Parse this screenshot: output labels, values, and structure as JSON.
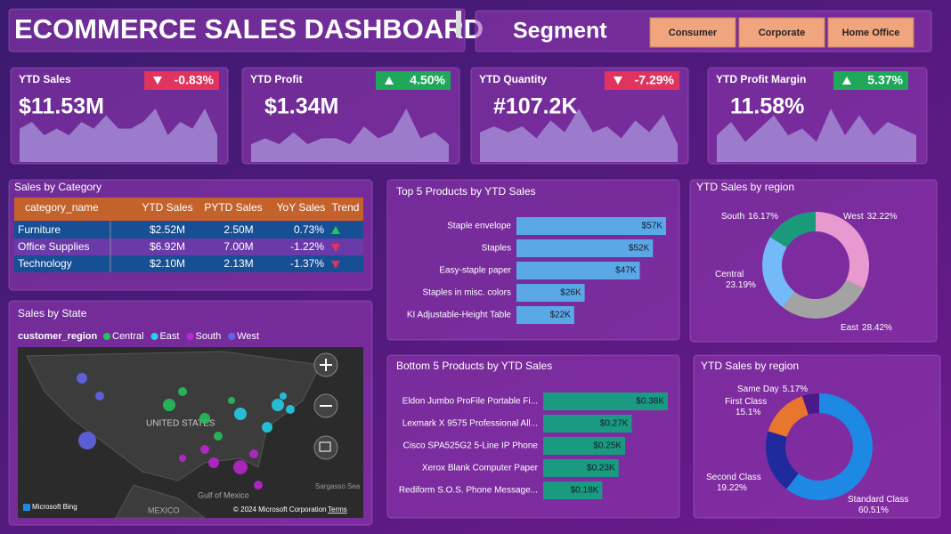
{
  "header": {
    "title": "ECOMMERCE SALES DASHBOARD"
  },
  "segment": {
    "label": "Segment",
    "options": [
      "Consumer",
      "Corporate",
      "Home Office"
    ]
  },
  "kpis": [
    {
      "title": "YTD Sales",
      "value": "$11.53M",
      "change": "-0.83%",
      "trend": [
        5,
        6,
        4,
        5,
        4,
        6,
        5,
        7,
        5,
        5,
        6,
        8,
        4,
        6,
        5,
        8,
        4
      ]
    },
    {
      "title": "YTD Profit",
      "value": "$1.34M",
      "change": "4.50%",
      "trend": [
        3,
        4,
        3,
        5,
        3,
        4,
        4,
        3,
        6,
        4,
        5,
        9,
        4,
        5,
        3
      ]
    },
    {
      "title": "YTD Quantity",
      "value": "#107.2K",
      "change": "-7.29%",
      "trend": [
        5,
        6,
        5,
        6,
        4,
        7,
        5,
        9,
        5,
        6,
        4,
        7,
        5,
        8,
        3
      ]
    },
    {
      "title": "YTD Profit Margin",
      "value": "11.58%",
      "change": "5.37%",
      "trend": [
        4,
        6,
        3,
        5,
        7,
        4,
        5,
        3,
        8,
        4,
        7,
        4,
        6,
        5,
        4
      ]
    }
  ],
  "table": {
    "title": "Sales by Category",
    "columns": [
      "category_name",
      "YTD Sales",
      "PYTD Sales",
      "YoY Sales",
      "Trend"
    ],
    "rows": [
      [
        "Furniture",
        "$2.52M",
        "2.50M",
        "0.73%"
      ],
      [
        "Office Supplies",
        "$6.92M",
        "7.00M",
        "-1.22%"
      ],
      [
        "Technology",
        "$2.10M",
        "2.13M",
        "-1.37%"
      ]
    ]
  },
  "map": {
    "title": "Sales by State",
    "legend_title": "customer_region",
    "legend": [
      {
        "name": "Central",
        "color": "#22c55e"
      },
      {
        "name": "East",
        "color": "#22d3ee"
      },
      {
        "name": "South",
        "color": "#c026d3"
      },
      {
        "name": "West",
        "color": "#6366f1"
      }
    ],
    "labels": [
      "UNITED STATES",
      "Gulf of Mexico",
      "MEXICO",
      "Sargasso Sea"
    ],
    "attribution": "Microsoft Bing",
    "copyright": "© 2024 Microsoft Corporation",
    "terms": "Terms"
  },
  "chart_data": [
    {
      "type": "bar",
      "title": "Top 5 Products by YTD Sales",
      "categories": [
        "Staple envelope",
        "Staples",
        "Easy-staple paper",
        "Staples in misc. colors",
        "KI Adjustable-Height Table"
      ],
      "values": [
        57,
        52,
        47,
        26,
        22
      ],
      "value_labels": [
        "$57K",
        "$52K",
        "$47K",
        "$26K",
        "$22K"
      ],
      "color": "#5aa9e6"
    },
    {
      "type": "bar",
      "title": "Bottom 5 Products by YTD Sales",
      "categories": [
        "Eldon Jumbo ProFile Portable Fi...",
        "Lexmark X 9575 Professional All...",
        "Cisco SPA525G2 5-Line IP Phone",
        "Xerox Blank Computer Paper",
        "Rediform S.O.S. Phone Message..."
      ],
      "values": [
        0.38,
        0.27,
        0.25,
        0.23,
        0.18
      ],
      "value_labels": [
        "$0.38K",
        "$0.27K",
        "$0.25K",
        "$0.23K",
        "$0.18K"
      ],
      "color": "#1a9a80"
    },
    {
      "type": "pie",
      "title": "YTD Sales by region",
      "categories": [
        "West",
        "East",
        "Central",
        "South"
      ],
      "values": [
        32.22,
        28.42,
        23.19,
        16.17
      ],
      "value_labels": [
        "32.22%",
        "28.42%",
        "23.19%",
        "16.17%"
      ],
      "colors": [
        "#e89ad0",
        "#a3a3a3",
        "#74b9f8",
        "#1a9a7a"
      ]
    },
    {
      "type": "pie",
      "title": "YTD Sales by region",
      "categories": [
        "Standard Class",
        "Second Class",
        "First Class",
        "Same Day"
      ],
      "values": [
        60.51,
        19.22,
        15.1,
        5.17
      ],
      "value_labels": [
        "60.51%",
        "19.22%",
        "15.1%",
        "5.17%"
      ],
      "colors": [
        "#1e88e5",
        "#1f2a9c",
        "#e8762c",
        "#4a1a8a"
      ]
    }
  ]
}
